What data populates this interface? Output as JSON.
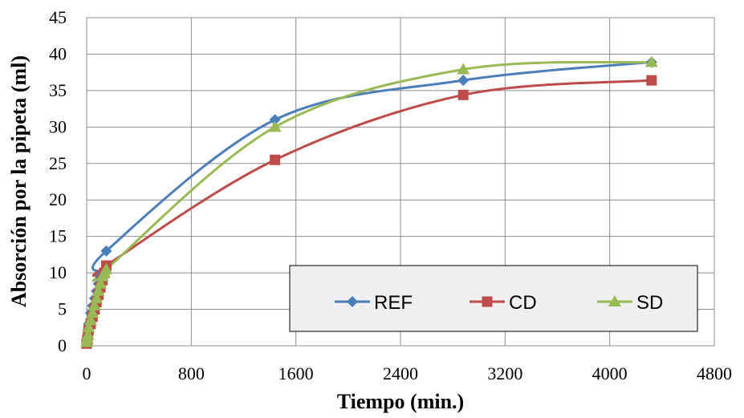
{
  "chart_data": {
    "type": "line",
    "title": "",
    "xlabel": "Tiempo (min.)",
    "ylabel": "Absorción por la pipeta (ml)",
    "xlim": [
      0,
      4800
    ],
    "ylim": [
      0,
      45
    ],
    "xticks": [
      0,
      800,
      1600,
      2400,
      3200,
      4000,
      4800
    ],
    "yticks": [
      0,
      5,
      10,
      15,
      20,
      25,
      30,
      35,
      40,
      45
    ],
    "grid": true,
    "legend_position": "bottom-right",
    "smooth": true,
    "series": [
      {
        "name": "REF",
        "color": "#4a7ebb",
        "marker": "diamond",
        "x": [
          0,
          5,
          10,
          15,
          30,
          45,
          60,
          75,
          90,
          105,
          120,
          150,
          1440,
          2880,
          4320
        ],
        "y": [
          0.5,
          1.0,
          2.0,
          3.0,
          4.5,
          5.5,
          6.5,
          7.5,
          8.5,
          9.5,
          10.0,
          13.0,
          31.0,
          36.4,
          38.9
        ]
      },
      {
        "name": "CD",
        "color": "#be4b48",
        "marker": "square",
        "x": [
          0,
          5,
          10,
          15,
          30,
          45,
          60,
          75,
          90,
          105,
          120,
          135,
          150,
          1440,
          2880,
          4320
        ],
        "y": [
          0.3,
          0.8,
          1.5,
          2.2,
          3.0,
          4.0,
          5.0,
          6.0,
          7.0,
          8.0,
          9.0,
          10.0,
          11.0,
          25.5,
          34.4,
          36.4
        ]
      },
      {
        "name": "SD",
        "color": "#98b954",
        "marker": "triangle",
        "x": [
          0,
          5,
          10,
          15,
          30,
          45,
          60,
          75,
          90,
          105,
          120,
          135,
          150,
          1440,
          2880,
          4320
        ],
        "y": [
          0.5,
          1.0,
          1.5,
          2.5,
          3.5,
          4.5,
          5.5,
          6.5,
          7.5,
          8.5,
          9.5,
          10.0,
          10.5,
          30.0,
          37.9,
          38.9
        ]
      }
    ]
  }
}
